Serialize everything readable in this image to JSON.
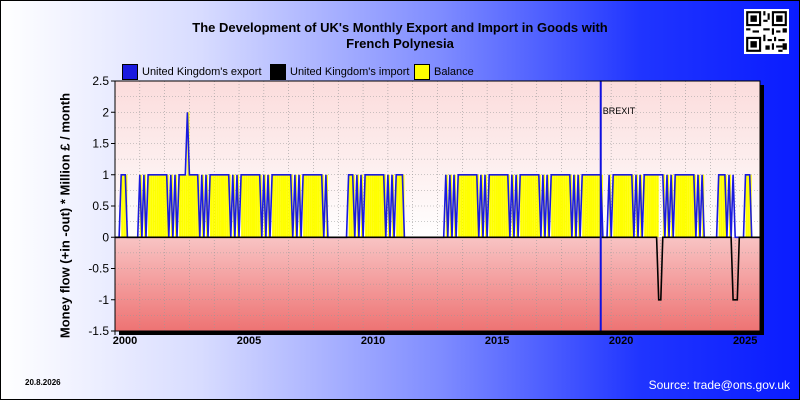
{
  "title_line1": "The Development of UK's Monthly Export and Import in Goods with",
  "title_line2": "French Polynesia",
  "legend": [
    {
      "label": "United Kingdom's export",
      "color": "#1a1adf"
    },
    {
      "label": "United Kingdom's import",
      "color": "#000000"
    },
    {
      "label": "Balance",
      "color": "#ffff00"
    }
  ],
  "ylabel": "Money flow (+in -out) * Million £ / month",
  "date_stamp": "20.8.2026",
  "source": "Source: trade@ons.gov.uk",
  "chart_data": {
    "type": "area",
    "title": "The Development of UK's Monthly Export and Import in Goods with French Polynesia",
    "ylabel": "Money flow (+in -out) * Million £ / month",
    "xlim": [
      2000,
      2026
    ],
    "ylim": [
      -1.5,
      2.5
    ],
    "x_ticks": [
      2000,
      2005,
      2010,
      2015,
      2020,
      2025
    ],
    "y_ticks": [
      -1.5,
      -1,
      -0.5,
      0,
      0.5,
      1,
      1.5,
      2,
      2.5
    ],
    "y_tick_labels": [
      "-1.5",
      "-1",
      "-0.5",
      "0",
      "0.5",
      "1",
      "1.5",
      "2",
      "2.5"
    ],
    "annotation": {
      "label": "BREXIT",
      "x": 2019.58
    },
    "grid": true,
    "legend_position": "top-left",
    "series": [
      {
        "name": "United Kingdom's export",
        "color": "#1a1adf",
        "note": "monthly export values of 0 or 1 (peak 2 in late 2002)"
      },
      {
        "name": "United Kingdom's import",
        "color": "#000000",
        "note": "zero except dips to -1 around 2022 and 2025"
      },
      {
        "name": "Balance",
        "color": "#ffff00"
      }
    ],
    "export_active_ranges": [
      [
        2000.25,
        2000.42
      ],
      [
        2001.0,
        2008.5
      ],
      [
        2009.4,
        2011.6
      ],
      [
        2013.3,
        2019.6
      ],
      [
        2019.9,
        2023.8
      ],
      [
        2024.3,
        2025.0
      ],
      [
        2025.4,
        2025.6
      ]
    ],
    "export_spike": {
      "x": 2002.9,
      "y": 2
    },
    "import_dips": [
      {
        "from": 2021.85,
        "to": 2022.05,
        "y": -1
      },
      {
        "from": 2024.85,
        "to": 2025.1,
        "y": -1
      }
    ]
  }
}
